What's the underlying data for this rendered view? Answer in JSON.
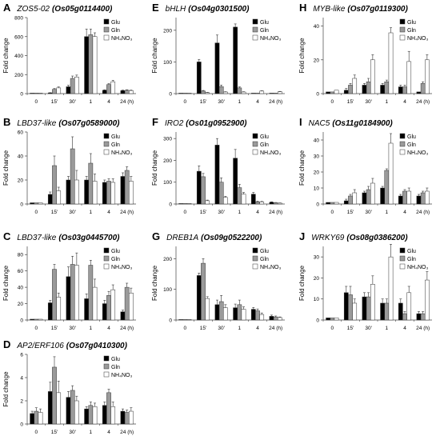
{
  "legend_labels": [
    "Glu",
    "Gln",
    "NH₄NO₃"
  ],
  "colors": {
    "Glu": "#000000",
    "Gln": "#9a9a9a",
    "NH4NO3": "#ffffff",
    "axis": "#444444"
  },
  "chart_data": [
    {
      "type": "bar",
      "letter": "A",
      "gene": "ZOS5-02",
      "id": "Os05g0114400",
      "ylabel": "Fold change",
      "ylim": [
        0,
        800
      ],
      "yticks": [
        0,
        200,
        400,
        600,
        800
      ],
      "categories": [
        "0",
        "15'",
        "30'",
        "1",
        "4",
        "24 (h)"
      ],
      "series": [
        {
          "name": "Glu",
          "values": [
            1,
            8,
            72,
            600,
            35,
            32
          ],
          "errors": [
            0,
            2,
            15,
            80,
            5,
            5
          ]
        },
        {
          "name": "Gln",
          "values": [
            1,
            45,
            160,
            620,
            95,
            35
          ],
          "errors": [
            0,
            8,
            25,
            60,
            10,
            5
          ]
        },
        {
          "name": "NH₄NO₃",
          "values": [
            1,
            60,
            175,
            600,
            125,
            32
          ],
          "errors": [
            0,
            10,
            20,
            40,
            15,
            5
          ]
        }
      ]
    },
    {
      "type": "bar",
      "letter": "E",
      "gene": "bHLH",
      "id": "Os04g0301500",
      "ylabel": "Fold change",
      "ylim": [
        0,
        240
      ],
      "yticks": [
        0,
        100,
        200
      ],
      "categories": [
        "0",
        "15'",
        "30'",
        "1",
        "4",
        "24 (h)"
      ],
      "series": [
        {
          "name": "Glu",
          "values": [
            1,
            100,
            160,
            210,
            1,
            1
          ],
          "errors": [
            0,
            8,
            25,
            10,
            0,
            0
          ]
        },
        {
          "name": "Gln",
          "values": [
            1,
            8,
            22,
            18,
            1,
            1
          ],
          "errors": [
            0,
            2,
            5,
            3,
            0,
            0
          ]
        },
        {
          "name": "NH₄NO₃",
          "values": [
            1,
            3,
            5,
            5,
            8,
            6
          ],
          "errors": [
            0,
            1,
            1,
            1,
            1,
            1
          ]
        }
      ]
    },
    {
      "type": "bar",
      "letter": "H",
      "gene": "MYB-like",
      "id": "Os07g0119300",
      "ylabel": "Fold change",
      "ylim": [
        0,
        45
      ],
      "yticks": [
        0,
        20,
        40
      ],
      "categories": [
        "0",
        "15'",
        "30'",
        "1",
        "4",
        "24 (h)"
      ],
      "series": [
        {
          "name": "Glu",
          "values": [
            1,
            2,
            5,
            5,
            4,
            1
          ],
          "errors": [
            0,
            1,
            1,
            1,
            1,
            0
          ]
        },
        {
          "name": "Gln",
          "values": [
            1,
            5,
            7,
            7,
            4,
            6
          ],
          "errors": [
            0,
            1,
            2,
            1,
            1,
            1
          ]
        },
        {
          "name": "NH₄NO₃",
          "values": [
            2,
            9,
            20,
            36,
            19,
            20
          ],
          "errors": [
            0,
            2,
            3,
            3,
            6,
            3
          ]
        }
      ]
    },
    {
      "type": "bar",
      "letter": "B",
      "gene": "LBD37-like",
      "id": "Os07g0589000",
      "ylabel": "Fold change",
      "ylim": [
        0,
        60
      ],
      "yticks": [
        0,
        20,
        40,
        60
      ],
      "categories": [
        "0",
        "15'",
        "30'",
        "1",
        "4",
        "24 (h)"
      ],
      "series": [
        {
          "name": "Glu",
          "values": [
            1,
            8,
            20,
            20,
            18,
            23
          ],
          "errors": [
            0,
            2,
            3,
            3,
            2,
            3
          ]
        },
        {
          "name": "Gln",
          "values": [
            1,
            32,
            46,
            34,
            19,
            28
          ],
          "errors": [
            0,
            8,
            10,
            8,
            2,
            3
          ]
        },
        {
          "name": "NH₄NO₃",
          "values": [
            1,
            11,
            20,
            19,
            18,
            19
          ],
          "errors": [
            0,
            3,
            8,
            6,
            3,
            4
          ]
        }
      ]
    },
    {
      "type": "bar",
      "letter": "F",
      "gene": "IRO2",
      "id": "Os01g0952900",
      "ylabel": "Fold change",
      "ylim": [
        0,
        330
      ],
      "yticks": [
        0,
        100,
        200,
        300
      ],
      "categories": [
        "0",
        "15'",
        "30'",
        "1",
        "4",
        "24 (h)"
      ],
      "series": [
        {
          "name": "Glu",
          "values": [
            1,
            150,
            270,
            210,
            45,
            8
          ],
          "errors": [
            0,
            25,
            30,
            40,
            8,
            2
          ]
        },
        {
          "name": "Gln",
          "values": [
            1,
            125,
            100,
            75,
            10,
            6
          ],
          "errors": [
            0,
            15,
            20,
            15,
            3,
            1
          ]
        },
        {
          "name": "NH₄NO₃",
          "values": [
            1,
            15,
            30,
            45,
            10,
            4
          ],
          "errors": [
            0,
            3,
            5,
            8,
            2,
            1
          ]
        }
      ]
    },
    {
      "type": "bar",
      "letter": "I",
      "gene": "NAC5",
      "id": "Os11g0184900",
      "ylabel": "Fold change",
      "ylim": [
        0,
        45
      ],
      "yticks": [
        0,
        10,
        20,
        30,
        40
      ],
      "categories": [
        "0",
        "15'",
        "30'",
        "1",
        "4",
        "24 (h)"
      ],
      "series": [
        {
          "name": "Glu",
          "values": [
            1,
            2,
            7,
            10,
            5,
            5
          ],
          "errors": [
            0,
            1,
            1,
            1,
            1,
            1
          ]
        },
        {
          "name": "Gln",
          "values": [
            1,
            5,
            9,
            21,
            8,
            7
          ],
          "errors": [
            0,
            1,
            2,
            1,
            1,
            1
          ]
        },
        {
          "name": "NH₄NO₃",
          "values": [
            1,
            7,
            13,
            38,
            8,
            8
          ],
          "errors": [
            0,
            2,
            3,
            6,
            2,
            2
          ]
        }
      ]
    },
    {
      "type": "bar",
      "letter": "C",
      "gene": "LBD37-like",
      "id": "Os03g0445700",
      "ylabel": "Fold change",
      "ylim": [
        0,
        90
      ],
      "yticks": [
        0,
        20,
        40,
        60,
        80
      ],
      "categories": [
        "0",
        "15'",
        "30'",
        "1",
        "4",
        "24 (h)"
      ],
      "series": [
        {
          "name": "Glu",
          "values": [
            1,
            21,
            53,
            26,
            20,
            10
          ],
          "errors": [
            0,
            3,
            12,
            6,
            4,
            2
          ]
        },
        {
          "name": "Gln",
          "values": [
            1,
            62,
            68,
            67,
            30,
            40
          ],
          "errors": [
            0,
            6,
            10,
            6,
            5,
            5
          ]
        },
        {
          "name": "NH₄NO₃",
          "values": [
            1,
            28,
            67,
            40,
            37,
            33
          ],
          "errors": [
            0,
            5,
            15,
            10,
            6,
            6
          ]
        }
      ]
    },
    {
      "type": "bar",
      "letter": "G",
      "gene": "DREB1A",
      "id": "Os09g0522200",
      "ylabel": "Fold change",
      "ylim": [
        0,
        240
      ],
      "yticks": [
        0,
        100,
        200
      ],
      "categories": [
        "0",
        "15'",
        "30'",
        "1",
        "4",
        "24 (h)"
      ],
      "series": [
        {
          "name": "Glu",
          "values": [
            1,
            145,
            50,
            40,
            35,
            12
          ],
          "errors": [
            0,
            8,
            15,
            12,
            6,
            4
          ]
        },
        {
          "name": "Gln",
          "values": [
            1,
            185,
            60,
            50,
            30,
            10
          ],
          "errors": [
            0,
            15,
            20,
            15,
            6,
            3
          ]
        },
        {
          "name": "NH₄NO₃",
          "values": [
            1,
            70,
            40,
            35,
            18,
            8
          ],
          "errors": [
            0,
            6,
            10,
            8,
            5,
            2
          ]
        }
      ]
    },
    {
      "type": "bar",
      "letter": "J",
      "gene": "WRKY69",
      "id": "Os08g0386200",
      "ylabel": "Fold change",
      "ylim": [
        0,
        35
      ],
      "yticks": [
        0,
        10,
        20,
        30
      ],
      "categories": [
        "0",
        "15'",
        "30'",
        "1",
        "4",
        "24 (h)"
      ],
      "series": [
        {
          "name": "Glu",
          "values": [
            1,
            13,
            11,
            8,
            8,
            3
          ],
          "errors": [
            0,
            3,
            2,
            2,
            2,
            1
          ]
        },
        {
          "name": "Gln",
          "values": [
            1,
            12,
            11,
            8,
            3,
            3
          ],
          "errors": [
            0,
            4,
            2,
            2,
            1,
            1
          ]
        },
        {
          "name": "NH₄NO₃",
          "values": [
            1,
            8,
            17,
            30,
            13,
            19
          ],
          "errors": [
            0,
            2,
            4,
            6,
            3,
            4
          ]
        }
      ]
    },
    {
      "type": "bar",
      "letter": "D",
      "gene": "AP2/ERF106",
      "id": "Os07g0410300",
      "ylabel": "Fold change",
      "ylim": [
        0,
        6
      ],
      "yticks": [
        0,
        2,
        4,
        6
      ],
      "categories": [
        "0",
        "15'",
        "30'",
        "1",
        "4",
        "24 (h)"
      ],
      "series": [
        {
          "name": "Glu",
          "values": [
            0.9,
            2.8,
            2.3,
            1.3,
            1.6,
            1.1
          ],
          "errors": [
            0.2,
            0.8,
            0.5,
            0.2,
            0.3,
            0.2
          ]
        },
        {
          "name": "Gln",
          "values": [
            1.1,
            4.9,
            2.9,
            1.6,
            2.7,
            1.0
          ],
          "errors": [
            0.3,
            0.9,
            0.4,
            0.3,
            0.3,
            0.2
          ]
        },
        {
          "name": "NH₄NO₃",
          "values": [
            1.0,
            2.7,
            2.0,
            1.5,
            1.5,
            1.1
          ],
          "errors": [
            0.3,
            1.0,
            0.4,
            0.3,
            0.4,
            0.3
          ]
        }
      ]
    }
  ]
}
